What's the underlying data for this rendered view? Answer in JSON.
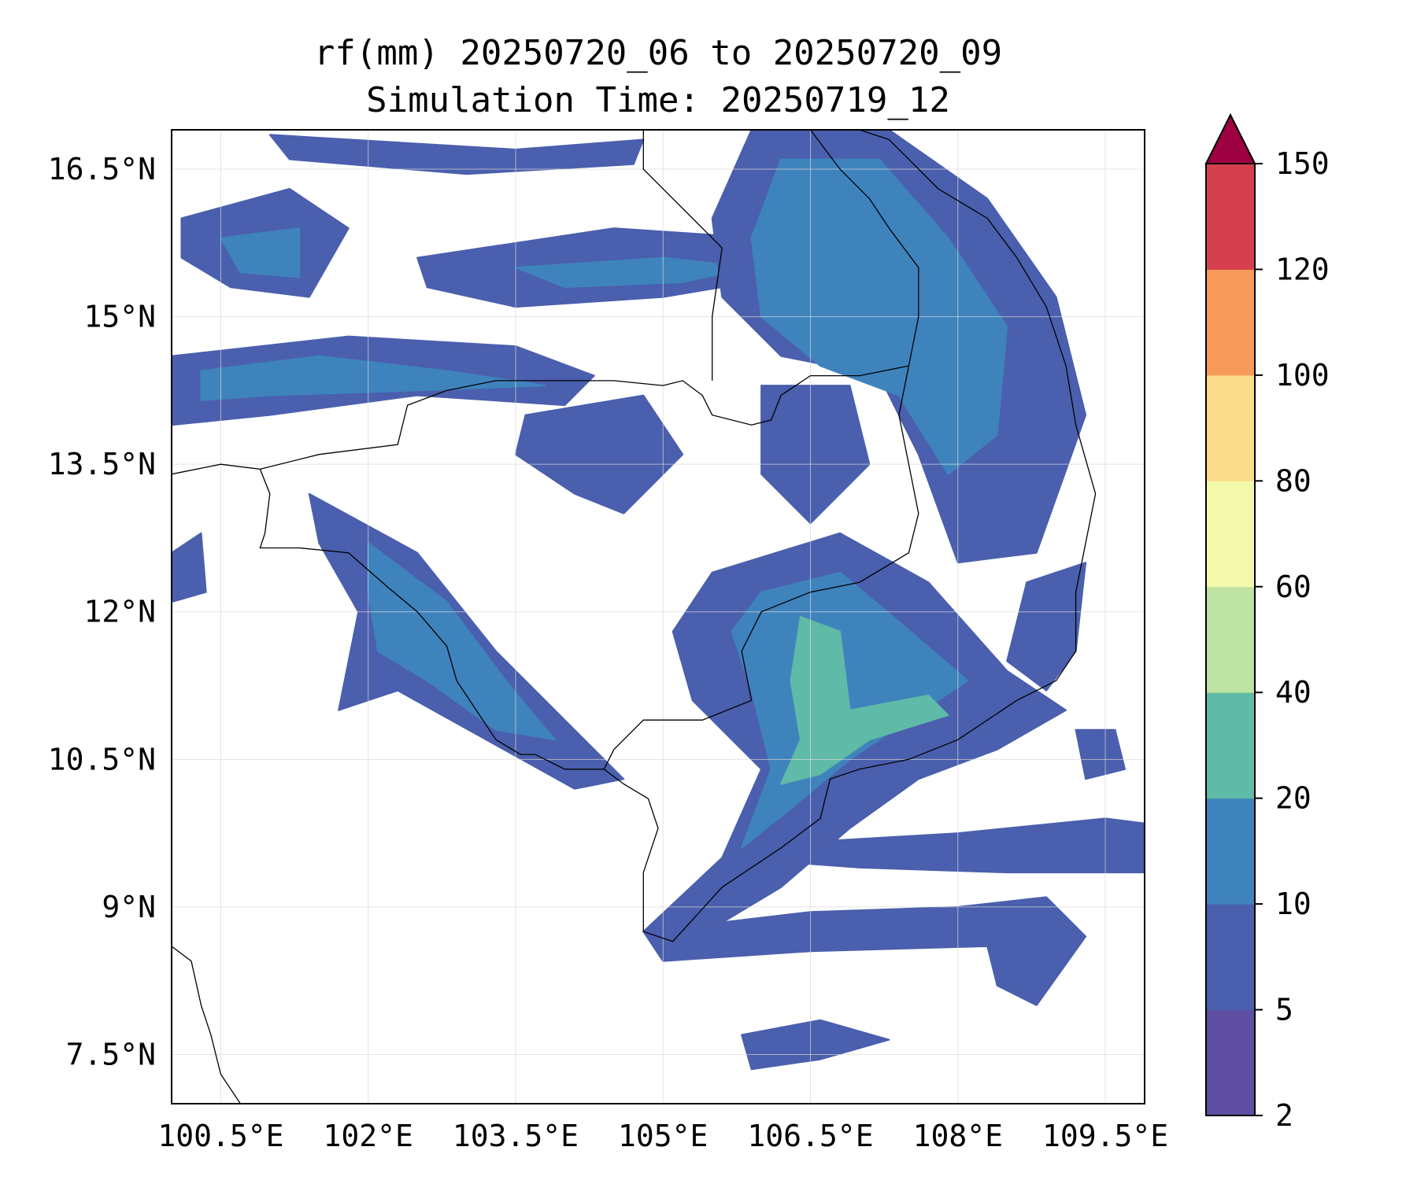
{
  "title": {
    "line1": "rf(mm) 20250720_06 to 20250720_09",
    "line2": "Simulation Time: 20250719_12"
  },
  "map": {
    "lon_range": [
      100.0,
      109.9
    ],
    "lat_range": [
      7.0,
      16.9
    ],
    "lon_ticks": [
      {
        "value": 100.5,
        "label": "100.5°E"
      },
      {
        "value": 102.0,
        "label": "102°E"
      },
      {
        "value": 103.5,
        "label": "103.5°E"
      },
      {
        "value": 105.0,
        "label": "105°E"
      },
      {
        "value": 106.5,
        "label": "106.5°E"
      },
      {
        "value": 108.0,
        "label": "108°E"
      },
      {
        "value": 109.5,
        "label": "109.5°E"
      }
    ],
    "lat_ticks": [
      {
        "value": 16.5,
        "label": "16.5°N"
      },
      {
        "value": 15.0,
        "label": "15°N"
      },
      {
        "value": 13.5,
        "label": "13.5°N"
      },
      {
        "value": 12.0,
        "label": "12°N"
      },
      {
        "value": 10.5,
        "label": "10.5°N"
      },
      {
        "value": 9.0,
        "label": "9°N"
      },
      {
        "value": 7.5,
        "label": "7.5°N"
      }
    ],
    "gridlines": true
  },
  "colorbar": {
    "levels": [
      {
        "label": "2",
        "color": "#5e4fa2"
      },
      {
        "label": "5",
        "color": "#4a5fad"
      },
      {
        "label": "10",
        "color": "#3f83bd"
      },
      {
        "label": "20",
        "color": "#5fbaa7"
      },
      {
        "label": "40",
        "color": "#bde2a1"
      },
      {
        "label": "60",
        "color": "#f3f9ab"
      },
      {
        "label": "80",
        "color": "#fbdc8a"
      },
      {
        "label": "100",
        "color": "#f89a5b"
      },
      {
        "label": "120",
        "color": "#d6404e"
      },
      {
        "label": "150",
        "color": "#9e0142"
      }
    ],
    "extend": "max"
  },
  "rain_fields": [
    {
      "name": "rain-band-north-west",
      "level": 1,
      "points": [
        [
          100.0,
          14.6
        ],
        [
          101.8,
          14.8
        ],
        [
          103.5,
          14.7
        ],
        [
          104.3,
          14.4
        ],
        [
          104.0,
          14.1
        ],
        [
          102.5,
          14.2
        ],
        [
          101.0,
          14.0
        ],
        [
          100.0,
          13.9
        ]
      ]
    },
    {
      "name": "rain-band-north-west-core",
      "level": 2,
      "points": [
        [
          100.3,
          14.45
        ],
        [
          101.5,
          14.6
        ],
        [
          102.8,
          14.45
        ],
        [
          103.8,
          14.3
        ],
        [
          102.5,
          14.25
        ],
        [
          101.0,
          14.2
        ],
        [
          100.3,
          14.15
        ]
      ]
    },
    {
      "name": "rain-band-upper-west",
      "level": 1,
      "points": [
        [
          100.1,
          16.0
        ],
        [
          101.2,
          16.3
        ],
        [
          101.8,
          15.9
        ],
        [
          101.4,
          15.2
        ],
        [
          100.6,
          15.3
        ],
        [
          100.1,
          15.6
        ]
      ]
    },
    {
      "name": "rain-band-upper-west-core",
      "level": 2,
      "points": [
        [
          100.5,
          15.8
        ],
        [
          101.3,
          15.9
        ],
        [
          101.3,
          15.4
        ],
        [
          100.7,
          15.45
        ]
      ]
    },
    {
      "name": "rain-band-top-strip",
      "level": 1,
      "points": [
        [
          101.0,
          16.85
        ],
        [
          103.5,
          16.7
        ],
        [
          104.8,
          16.8
        ],
        [
          104.7,
          16.55
        ],
        [
          103.0,
          16.45
        ],
        [
          101.2,
          16.6
        ]
      ]
    },
    {
      "name": "rain-band-mid-north",
      "level": 1,
      "points": [
        [
          102.5,
          15.6
        ],
        [
          104.5,
          15.9
        ],
        [
          106.0,
          15.8
        ],
        [
          106.2,
          15.4
        ],
        [
          105.0,
          15.2
        ],
        [
          103.5,
          15.1
        ],
        [
          102.6,
          15.3
        ]
      ]
    },
    {
      "name": "rain-band-mid-north-core",
      "level": 2,
      "points": [
        [
          103.5,
          15.5
        ],
        [
          105.0,
          15.6
        ],
        [
          105.9,
          15.5
        ],
        [
          105.2,
          15.35
        ],
        [
          104.0,
          15.3
        ]
      ]
    },
    {
      "name": "rain-band-east-north",
      "level": 1,
      "points": [
        [
          105.9,
          16.9
        ],
        [
          107.3,
          16.9
        ],
        [
          108.3,
          16.2
        ],
        [
          109.0,
          15.2
        ],
        [
          109.3,
          14.0
        ],
        [
          108.8,
          12.6
        ],
        [
          108.0,
          12.5
        ],
        [
          107.6,
          13.6
        ],
        [
          107.2,
          14.4
        ],
        [
          106.2,
          14.6
        ],
        [
          105.6,
          15.2
        ],
        [
          105.5,
          16.0
        ]
      ]
    },
    {
      "name": "rain-band-east-north-core",
      "level": 2,
      "points": [
        [
          106.2,
          16.6
        ],
        [
          107.2,
          16.6
        ],
        [
          107.9,
          15.8
        ],
        [
          108.5,
          14.9
        ],
        [
          108.4,
          13.8
        ],
        [
          107.9,
          13.4
        ],
        [
          107.4,
          14.2
        ],
        [
          106.6,
          14.5
        ],
        [
          106.0,
          15.0
        ],
        [
          105.9,
          15.8
        ]
      ]
    },
    {
      "name": "rain-band-coast-southwest",
      "level": 1,
      "points": [
        [
          101.4,
          13.2
        ],
        [
          102.5,
          12.6
        ],
        [
          103.3,
          11.6
        ],
        [
          104.0,
          10.9
        ],
        [
          104.6,
          10.3
        ],
        [
          104.1,
          10.2
        ],
        [
          103.2,
          10.7
        ],
        [
          102.3,
          11.2
        ],
        [
          101.7,
          11.0
        ],
        [
          101.9,
          12.0
        ],
        [
          101.5,
          12.7
        ]
      ]
    },
    {
      "name": "rain-band-coast-southwest-core",
      "level": 2,
      "points": [
        [
          102.0,
          12.7
        ],
        [
          102.8,
          12.1
        ],
        [
          103.4,
          11.3
        ],
        [
          103.9,
          10.7
        ],
        [
          103.3,
          10.8
        ],
        [
          102.6,
          11.3
        ],
        [
          102.1,
          11.6
        ],
        [
          102.0,
          12.2
        ]
      ]
    },
    {
      "name": "rain-band-south-central",
      "level": 1,
      "points": [
        [
          105.5,
          12.4
        ],
        [
          106.8,
          12.8
        ],
        [
          107.7,
          12.3
        ],
        [
          108.5,
          11.4
        ],
        [
          109.1,
          11.0
        ],
        [
          108.4,
          10.6
        ],
        [
          107.6,
          10.3
        ],
        [
          106.9,
          9.8
        ],
        [
          106.2,
          9.2
        ],
        [
          105.2,
          8.6
        ],
        [
          104.8,
          8.75
        ],
        [
          105.6,
          9.5
        ],
        [
          106.0,
          10.4
        ],
        [
          105.3,
          11.1
        ],
        [
          105.1,
          11.8
        ]
      ]
    },
    {
      "name": "rain-band-south-central-core",
      "level": 2,
      "points": [
        [
          106.0,
          12.2
        ],
        [
          106.8,
          12.4
        ],
        [
          107.4,
          11.9
        ],
        [
          108.1,
          11.3
        ],
        [
          107.5,
          10.9
        ],
        [
          106.9,
          10.5
        ],
        [
          106.3,
          10.0
        ],
        [
          105.8,
          9.6
        ],
        [
          106.1,
          10.4
        ],
        [
          105.9,
          11.2
        ],
        [
          105.7,
          11.8
        ]
      ]
    },
    {
      "name": "rain-band-south-central-heavy",
      "level": 3,
      "points": [
        [
          106.4,
          11.95
        ],
        [
          106.8,
          11.8
        ],
        [
          106.9,
          11.0
        ],
        [
          107.7,
          11.15
        ],
        [
          107.9,
          10.95
        ],
        [
          107.1,
          10.7
        ],
        [
          106.6,
          10.35
        ],
        [
          106.2,
          10.25
        ],
        [
          106.4,
          10.7
        ],
        [
          106.3,
          11.3
        ]
      ]
    },
    {
      "name": "rain-band-south-sea-east",
      "level": 1,
      "points": [
        [
          106.3,
          9.65
        ],
        [
          108.0,
          9.75
        ],
        [
          109.5,
          9.9
        ],
        [
          109.9,
          9.85
        ],
        [
          109.9,
          9.35
        ],
        [
          108.5,
          9.35
        ],
        [
          107.0,
          9.4
        ],
        [
          106.3,
          9.45
        ]
      ]
    },
    {
      "name": "rain-band-south-sea-lower",
      "level": 1,
      "points": [
        [
          104.8,
          8.75
        ],
        [
          106.5,
          8.95
        ],
        [
          108.0,
          9.0
        ],
        [
          108.9,
          9.1
        ],
        [
          109.3,
          8.7
        ],
        [
          108.8,
          8.0
        ],
        [
          108.4,
          8.2
        ],
        [
          108.3,
          8.6
        ],
        [
          106.5,
          8.55
        ],
        [
          105.0,
          8.45
        ]
      ]
    },
    {
      "name": "rain-band-south-sea-patch",
      "level": 1,
      "points": [
        [
          105.8,
          7.7
        ],
        [
          106.6,
          7.85
        ],
        [
          107.3,
          7.65
        ],
        [
          106.6,
          7.45
        ],
        [
          105.9,
          7.35
        ]
      ]
    },
    {
      "name": "rain-band-west-sea-patch",
      "level": 1,
      "points": [
        [
          100.0,
          12.6
        ],
        [
          100.3,
          12.8
        ],
        [
          100.35,
          12.2
        ],
        [
          100.0,
          12.1
        ]
      ]
    },
    {
      "name": "rain-band-interior-west",
      "level": 1,
      "points": [
        [
          103.6,
          14.0
        ],
        [
          104.8,
          14.2
        ],
        [
          105.2,
          13.6
        ],
        [
          104.6,
          13.0
        ],
        [
          104.1,
          13.2
        ],
        [
          103.5,
          13.6
        ]
      ]
    },
    {
      "name": "rain-band-interior-east",
      "level": 1,
      "points": [
        [
          106.0,
          14.3
        ],
        [
          106.9,
          14.3
        ],
        [
          107.1,
          13.5
        ],
        [
          106.5,
          12.9
        ],
        [
          106.0,
          13.4
        ]
      ]
    },
    {
      "name": "rain-band-east-coast-lower",
      "level": 1,
      "points": [
        [
          108.7,
          12.3
        ],
        [
          109.3,
          12.5
        ],
        [
          109.2,
          11.6
        ],
        [
          108.9,
          11.2
        ],
        [
          108.5,
          11.5
        ],
        [
          108.6,
          11.9
        ]
      ]
    },
    {
      "name": "rain-band-far-east-patch",
      "level": 1,
      "points": [
        [
          109.2,
          10.8
        ],
        [
          109.6,
          10.8
        ],
        [
          109.7,
          10.4
        ],
        [
          109.3,
          10.3
        ]
      ]
    }
  ],
  "coastlines": [
    {
      "name": "coast-gulf-of-thailand-north",
      "points": [
        [
          100.0,
          13.4
        ],
        [
          100.5,
          13.5
        ],
        [
          100.9,
          13.45
        ],
        [
          101.0,
          13.2
        ],
        [
          100.95,
          12.8
        ],
        [
          100.9,
          12.65
        ],
        [
          101.3,
          12.65
        ],
        [
          101.8,
          12.6
        ],
        [
          102.2,
          12.25
        ],
        [
          102.5,
          12.0
        ],
        [
          102.8,
          11.65
        ],
        [
          102.9,
          11.3
        ],
        [
          103.1,
          11.0
        ],
        [
          103.3,
          10.7
        ],
        [
          103.55,
          10.55
        ],
        [
          103.7,
          10.55
        ],
        [
          104.0,
          10.4
        ],
        [
          104.4,
          10.4
        ],
        [
          104.6,
          10.25
        ],
        [
          104.85,
          10.1
        ],
        [
          104.95,
          9.8
        ],
        [
          104.8,
          9.35
        ],
        [
          104.8,
          8.75
        ],
        [
          105.1,
          8.65
        ],
        [
          105.6,
          9.2
        ],
        [
          106.2,
          9.6
        ],
        [
          106.6,
          9.9
        ],
        [
          106.7,
          10.3
        ],
        [
          107.0,
          10.4
        ],
        [
          107.5,
          10.5
        ],
        [
          108.0,
          10.7
        ],
        [
          108.6,
          11.1
        ],
        [
          109.0,
          11.3
        ],
        [
          109.2,
          11.6
        ],
        [
          109.2,
          12.2
        ],
        [
          109.3,
          12.7
        ],
        [
          109.4,
          13.2
        ],
        [
          109.2,
          13.9
        ],
        [
          109.1,
          14.5
        ],
        [
          108.9,
          15.1
        ],
        [
          108.6,
          15.6
        ],
        [
          108.3,
          16.0
        ],
        [
          107.8,
          16.3
        ],
        [
          107.3,
          16.8
        ],
        [
          107.0,
          16.9
        ]
      ]
    },
    {
      "name": "coast-malay-peninsula",
      "points": [
        [
          100.0,
          8.6
        ],
        [
          100.2,
          8.45
        ],
        [
          100.3,
          8.0
        ],
        [
          100.4,
          7.7
        ],
        [
          100.5,
          7.3
        ],
        [
          100.7,
          7.0
        ]
      ]
    },
    {
      "name": "border-thailand-cambodia",
      "points": [
        [
          100.9,
          13.45
        ],
        [
          101.5,
          13.6
        ],
        [
          102.3,
          13.7
        ],
        [
          102.4,
          14.1
        ],
        [
          102.8,
          14.25
        ],
        [
          103.3,
          14.35
        ],
        [
          104.0,
          14.35
        ],
        [
          104.5,
          14.35
        ],
        [
          105.0,
          14.3
        ],
        [
          105.2,
          14.35
        ],
        [
          105.4,
          14.2
        ],
        [
          105.5,
          14.0
        ],
        [
          105.9,
          13.9
        ],
        [
          106.1,
          13.95
        ],
        [
          106.2,
          14.2
        ],
        [
          106.5,
          14.4
        ],
        [
          107.0,
          14.4
        ],
        [
          107.5,
          14.5
        ],
        [
          107.6,
          15.0
        ],
        [
          107.6,
          15.5
        ],
        [
          107.3,
          15.9
        ],
        [
          107.1,
          16.2
        ],
        [
          106.8,
          16.5
        ],
        [
          106.5,
          16.9
        ]
      ]
    },
    {
      "name": "border-cambodia-vietnam",
      "points": [
        [
          107.5,
          14.5
        ],
        [
          107.4,
          14.0
        ],
        [
          107.5,
          13.5
        ],
        [
          107.6,
          13.0
        ],
        [
          107.5,
          12.6
        ],
        [
          107.0,
          12.3
        ],
        [
          106.5,
          12.2
        ],
        [
          106.0,
          12.0
        ],
        [
          105.8,
          11.6
        ],
        [
          105.9,
          11.1
        ],
        [
          105.4,
          10.9
        ],
        [
          104.8,
          10.9
        ],
        [
          104.5,
          10.6
        ],
        [
          104.4,
          10.4
        ]
      ]
    },
    {
      "name": "border-laos-thailand",
      "points": [
        [
          104.8,
          16.9
        ],
        [
          104.8,
          16.5
        ],
        [
          105.3,
          16.0
        ],
        [
          105.6,
          15.7
        ],
        [
          105.5,
          15.0
        ],
        [
          105.5,
          14.35
        ]
      ]
    }
  ]
}
